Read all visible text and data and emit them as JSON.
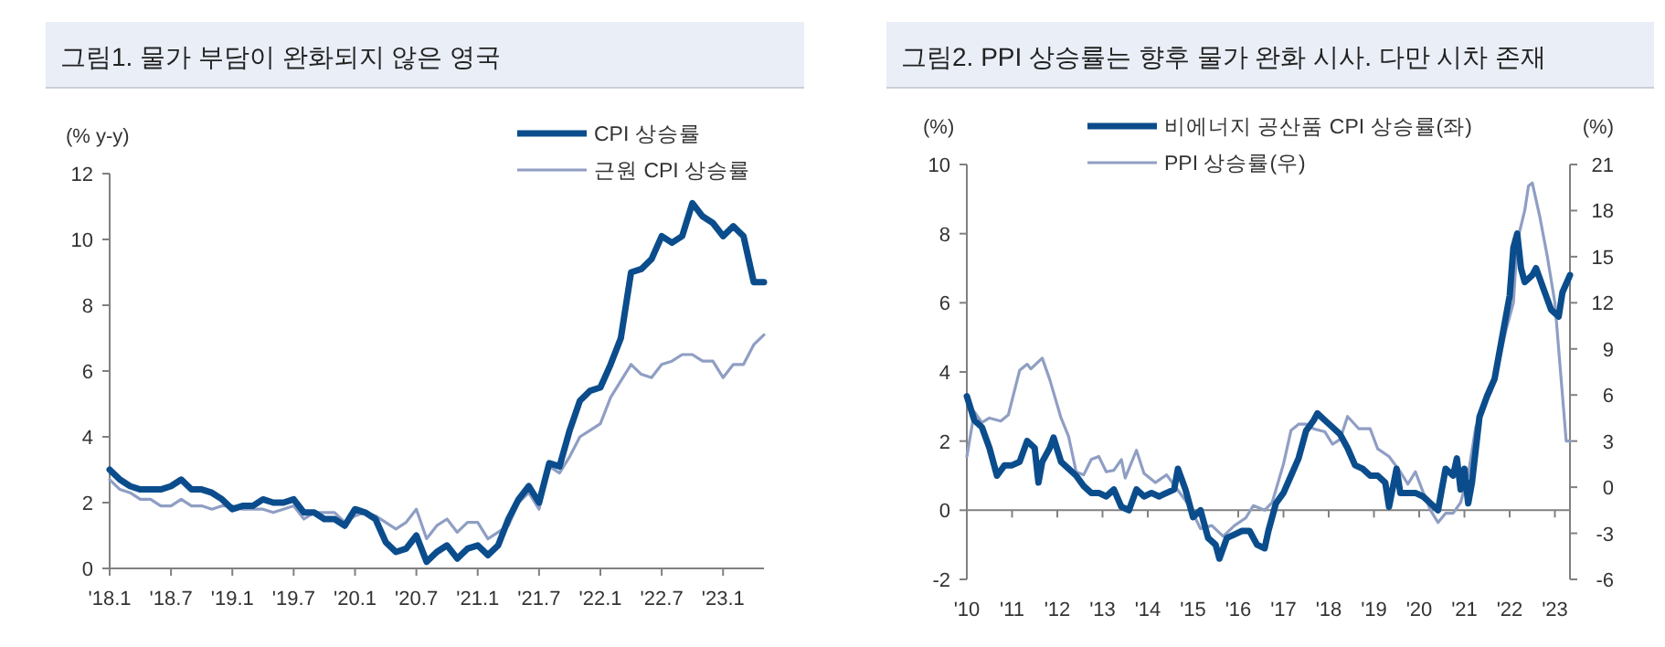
{
  "chart_data": [
    {
      "type": "line",
      "title": "그림1. 물가 부담이 완화되지 않은 영국",
      "ylabel": "(% y-y)",
      "legend": "top right",
      "x": [
        "2018-01",
        "2018-02",
        "2018-03",
        "2018-04",
        "2018-05",
        "2018-06",
        "2018-07",
        "2018-08",
        "2018-09",
        "2018-10",
        "2018-11",
        "2018-12",
        "2019-01",
        "2019-02",
        "2019-03",
        "2019-04",
        "2019-05",
        "2019-06",
        "2019-07",
        "2019-08",
        "2019-09",
        "2019-10",
        "2019-11",
        "2019-12",
        "2020-01",
        "2020-02",
        "2020-03",
        "2020-04",
        "2020-05",
        "2020-06",
        "2020-07",
        "2020-08",
        "2020-09",
        "2020-10",
        "2020-11",
        "2020-12",
        "2021-01",
        "2021-02",
        "2021-03",
        "2021-04",
        "2021-05",
        "2021-06",
        "2021-07",
        "2021-08",
        "2021-09",
        "2021-10",
        "2021-11",
        "2021-12",
        "2022-01",
        "2022-02",
        "2022-03",
        "2022-04",
        "2022-05",
        "2022-06",
        "2022-07",
        "2022-08",
        "2022-09",
        "2022-10",
        "2022-11",
        "2022-12",
        "2023-01",
        "2023-02",
        "2023-03",
        "2023-04",
        "2023-05"
      ],
      "xlim": [
        "2018-01",
        "2023-05"
      ],
      "xticks": [
        {
          "value": "2018-01",
          "label": "'18.1"
        },
        {
          "value": "2018-07",
          "label": "'18.7"
        },
        {
          "value": "2019-01",
          "label": "'19.1"
        },
        {
          "value": "2019-07",
          "label": "'19.7"
        },
        {
          "value": "2020-01",
          "label": "'20.1"
        },
        {
          "value": "2020-07",
          "label": "'20.7"
        },
        {
          "value": "2021-01",
          "label": "'21.1"
        },
        {
          "value": "2021-07",
          "label": "'21.7"
        },
        {
          "value": "2022-01",
          "label": "'22.1"
        },
        {
          "value": "2022-07",
          "label": "'22.7"
        },
        {
          "value": "2023-01",
          "label": "'23.1"
        }
      ],
      "ylim": [
        0,
        12
      ],
      "yticks": [
        0,
        2,
        4,
        6,
        8,
        10,
        12
      ],
      "series": [
        {
          "name": "CPI 상승률",
          "color": "#0b4d8c",
          "values": [
            3.0,
            2.7,
            2.5,
            2.4,
            2.4,
            2.4,
            2.5,
            2.7,
            2.4,
            2.4,
            2.3,
            2.1,
            1.8,
            1.9,
            1.9,
            2.1,
            2.0,
            2.0,
            2.1,
            1.7,
            1.7,
            1.5,
            1.5,
            1.3,
            1.8,
            1.7,
            1.5,
            0.8,
            0.5,
            0.6,
            1.0,
            0.2,
            0.5,
            0.7,
            0.3,
            0.6,
            0.7,
            0.4,
            0.7,
            1.5,
            2.1,
            2.5,
            2.0,
            3.2,
            3.1,
            4.2,
            5.1,
            5.4,
            5.5,
            6.2,
            7.0,
            9.0,
            9.1,
            9.4,
            10.1,
            9.9,
            10.1,
            11.1,
            10.7,
            10.5,
            10.1,
            10.4,
            10.1,
            8.7,
            8.7
          ]
        },
        {
          "name": "근원 CPI 상승률",
          "color": "#8f9ec3",
          "values": [
            2.7,
            2.4,
            2.3,
            2.1,
            2.1,
            1.9,
            1.9,
            2.1,
            1.9,
            1.9,
            1.8,
            1.9,
            1.9,
            1.8,
            1.8,
            1.8,
            1.7,
            1.8,
            1.9,
            1.5,
            1.7,
            1.7,
            1.7,
            1.4,
            1.6,
            1.7,
            1.6,
            1.4,
            1.2,
            1.4,
            1.8,
            0.9,
            1.3,
            1.5,
            1.1,
            1.4,
            1.4,
            0.9,
            1.1,
            1.3,
            2.0,
            2.3,
            1.8,
            3.1,
            2.9,
            3.4,
            4.0,
            4.2,
            4.4,
            5.2,
            5.7,
            6.2,
            5.9,
            5.8,
            6.2,
            6.3,
            6.5,
            6.5,
            6.3,
            6.3,
            5.8,
            6.2,
            6.2,
            6.8,
            7.1
          ]
        }
      ]
    },
    {
      "type": "line",
      "title": "그림2. PPI 상승률는 향후 물가 완화 시사. 다만 시차 존재",
      "ylabel": "(%)",
      "y2label": "(%)",
      "legend": "top",
      "xlim": [
        "2010-01",
        "2023-05"
      ],
      "xticks": [
        {
          "value": "2010-01",
          "label": "'10"
        },
        {
          "value": "2011-01",
          "label": "'11"
        },
        {
          "value": "2012-01",
          "label": "'12"
        },
        {
          "value": "2013-01",
          "label": "'13"
        },
        {
          "value": "2014-01",
          "label": "'14"
        },
        {
          "value": "2015-01",
          "label": "'15"
        },
        {
          "value": "2016-01",
          "label": "'16"
        },
        {
          "value": "2017-01",
          "label": "'17"
        },
        {
          "value": "2018-01",
          "label": "'18"
        },
        {
          "value": "2019-01",
          "label": "'19"
        },
        {
          "value": "2020-01",
          "label": "'20"
        },
        {
          "value": "2021-01",
          "label": "'21"
        },
        {
          "value": "2022-01",
          "label": "'22"
        },
        {
          "value": "2023-01",
          "label": "'23"
        }
      ],
      "ylim": [
        -2,
        10
      ],
      "yticks": [
        -2,
        0,
        2,
        4,
        6,
        8,
        10
      ],
      "y2lim": [
        -6,
        21
      ],
      "y2ticks": [
        -6,
        -3,
        0,
        3,
        6,
        9,
        12,
        15,
        18,
        21
      ],
      "series": [
        {
          "name": "비에너지 공산품 CPI 상승률(좌)",
          "color": "#0b4d8c",
          "x": [
            "2010-01",
            "2010-03",
            "2010-05",
            "2010-07",
            "2010-09",
            "2010-11",
            "2011-01",
            "2011-03",
            "2011-05",
            "2011-07",
            "2011-08",
            "2011-09",
            "2011-11",
            "2011-12",
            "2012-02",
            "2012-04",
            "2012-06",
            "2012-08",
            "2012-10",
            "2012-12",
            "2013-02",
            "2013-04",
            "2013-06",
            "2013-08",
            "2013-10",
            "2013-12",
            "2014-02",
            "2014-04",
            "2014-06",
            "2014-08",
            "2014-09",
            "2014-11",
            "2015-01",
            "2015-03",
            "2015-05",
            "2015-07",
            "2015-08",
            "2015-10",
            "2015-12",
            "2016-02",
            "2016-04",
            "2016-06",
            "2016-08",
            "2016-09",
            "2016-11",
            "2017-01",
            "2017-03",
            "2017-05",
            "2017-07",
            "2017-09",
            "2017-10",
            "2017-12",
            "2018-02",
            "2018-04",
            "2018-06",
            "2018-08",
            "2018-10",
            "2018-12",
            "2019-02",
            "2019-04",
            "2019-05",
            "2019-07",
            "2019-08",
            "2019-10",
            "2019-12",
            "2020-02",
            "2020-04",
            "2020-06",
            "2020-08",
            "2020-10",
            "2020-11",
            "2020-12",
            "2021-01",
            "2021-02",
            "2021-03",
            "2021-05",
            "2021-07",
            "2021-09",
            "2021-11",
            "2022-01",
            "2022-02",
            "2022-03",
            "2022-04",
            "2022-05",
            "2022-07",
            "2022-08",
            "2022-10",
            "2022-12",
            "2023-02",
            "2023-03",
            "2023-05"
          ],
          "values": [
            3.3,
            2.6,
            2.4,
            1.8,
            1.0,
            1.3,
            1.3,
            1.4,
            2.0,
            1.8,
            0.8,
            1.4,
            1.8,
            2.1,
            1.4,
            1.2,
            1.0,
            0.7,
            0.5,
            0.5,
            0.4,
            0.6,
            0.1,
            0.0,
            0.6,
            0.4,
            0.5,
            0.4,
            0.5,
            0.6,
            1.2,
            0.6,
            -0.2,
            0.0,
            -0.8,
            -1.0,
            -1.4,
            -0.8,
            -0.7,
            -0.6,
            -0.6,
            -1.0,
            -1.1,
            -0.6,
            0.2,
            0.5,
            1.0,
            1.5,
            2.3,
            2.6,
            2.8,
            2.6,
            2.4,
            2.2,
            1.8,
            1.3,
            1.2,
            1.0,
            1.0,
            0.8,
            0.1,
            1.2,
            0.5,
            0.5,
            0.5,
            0.4,
            0.2,
            0.0,
            1.2,
            1.0,
            1.5,
            0.6,
            1.2,
            0.2,
            0.8,
            2.7,
            3.3,
            3.8,
            5.0,
            6.2,
            7.6,
            8.0,
            7.0,
            6.6,
            6.8,
            7.0,
            6.4,
            5.8,
            5.6,
            6.3,
            6.8
          ]
        },
        {
          "name": "PPI 상승률(우)",
          "color": "#8f9ec3",
          "axis": "y2",
          "x": [
            "2010-01",
            "2010-03",
            "2010-05",
            "2010-07",
            "2010-10",
            "2010-12",
            "2011-03",
            "2011-05",
            "2011-06",
            "2011-09",
            "2011-11",
            "2012-02",
            "2012-04",
            "2012-06",
            "2012-08",
            "2012-10",
            "2012-12",
            "2013-02",
            "2013-04",
            "2013-06",
            "2013-07",
            "2013-10",
            "2013-12",
            "2014-03",
            "2014-06",
            "2014-09",
            "2014-12",
            "2015-03",
            "2015-06",
            "2015-09",
            "2015-12",
            "2016-03",
            "2016-05",
            "2016-08",
            "2016-10",
            "2017-01",
            "2017-03",
            "2017-05",
            "2017-07",
            "2017-09",
            "2017-12",
            "2018-02",
            "2018-04",
            "2018-06",
            "2018-09",
            "2018-12",
            "2019-02",
            "2019-05",
            "2019-08",
            "2019-10",
            "2019-12",
            "2020-02",
            "2020-04",
            "2020-06",
            "2020-08",
            "2020-10",
            "2020-12",
            "2021-02",
            "2021-04",
            "2021-06",
            "2021-08",
            "2021-10",
            "2021-12",
            "2022-02",
            "2022-03",
            "2022-05",
            "2022-06",
            "2022-07",
            "2022-09",
            "2022-11",
            "2023-01",
            "2023-03",
            "2023-04",
            "2023-05"
          ],
          "values": [
            2.0,
            4.9,
            4.2,
            4.5,
            4.3,
            4.7,
            7.6,
            8.0,
            7.7,
            8.4,
            7.0,
            4.5,
            3.3,
            1.0,
            0.8,
            1.8,
            2.0,
            1.0,
            1.1,
            1.8,
            0.6,
            2.4,
            0.9,
            0.3,
            0.8,
            -0.2,
            -1.2,
            -2.7,
            -2.5,
            -3.2,
            -2.5,
            -2.0,
            -1.2,
            -1.5,
            -1.0,
            1.5,
            3.7,
            4.1,
            4.1,
            3.8,
            3.6,
            2.8,
            3.1,
            4.6,
            3.8,
            3.8,
            2.5,
            2.0,
            1.0,
            0.2,
            1.0,
            -0.3,
            -1.5,
            -2.3,
            -1.7,
            -1.7,
            -1.0,
            0.8,
            3.9,
            5.2,
            6.2,
            8.0,
            10.2,
            12.0,
            16.0,
            18.0,
            19.6,
            19.8,
            17.6,
            15.0,
            12.0,
            6.0,
            3.0,
            3.0
          ]
        }
      ]
    }
  ]
}
